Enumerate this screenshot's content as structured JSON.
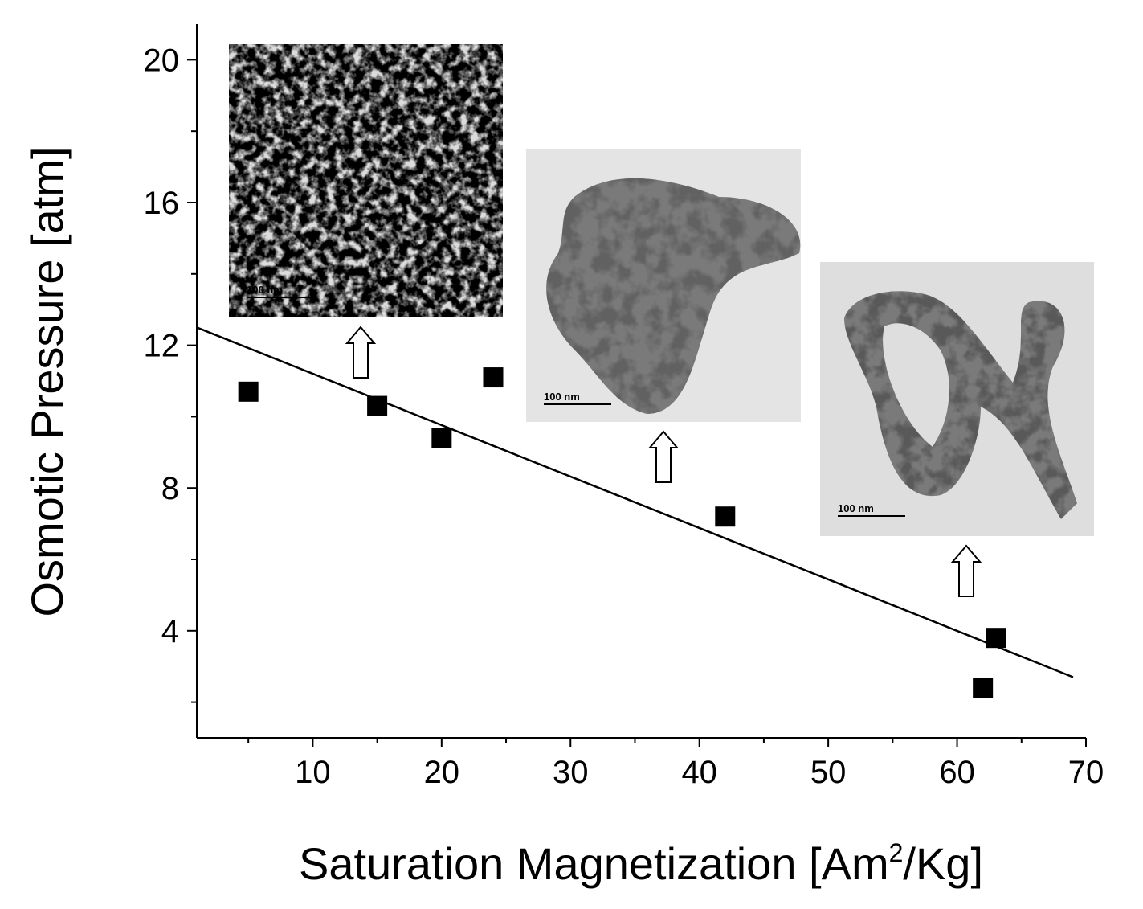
{
  "chart_data": {
    "type": "scatter",
    "xlabel": "Saturation Magnetization [Am",
    "xlabel_superscript": "2",
    "xlabel_suffix": "/Kg]",
    "ylabel": "Osmotic Pressure [atm]",
    "xlim": [
      1,
      70
    ],
    "ylim": [
      1,
      21
    ],
    "x_ticks": [
      10,
      20,
      30,
      40,
      50,
      60,
      70
    ],
    "y_ticks": [
      4,
      8,
      12,
      16,
      20
    ],
    "grid": false,
    "points": [
      {
        "x": 5,
        "y": 10.7
      },
      {
        "x": 15,
        "y": 10.3
      },
      {
        "x": 20,
        "y": 9.4
      },
      {
        "x": 24,
        "y": 11.1
      },
      {
        "x": 42,
        "y": 7.2
      },
      {
        "x": 62,
        "y": 2.4
      },
      {
        "x": 63,
        "y": 3.8
      }
    ],
    "fit_line": {
      "x": [
        1,
        69
      ],
      "y": [
        12.5,
        2.7
      ]
    },
    "insets": [
      {
        "name": "TEM image 1",
        "scale_bar_label": "100 nm",
        "points_to_x": 13.5
      },
      {
        "name": "TEM image 2",
        "scale_bar_label": "100 nm",
        "points_to_x": 37
      },
      {
        "name": "TEM image 3",
        "scale_bar_label": "100 nm",
        "points_to_x": 61
      }
    ]
  }
}
